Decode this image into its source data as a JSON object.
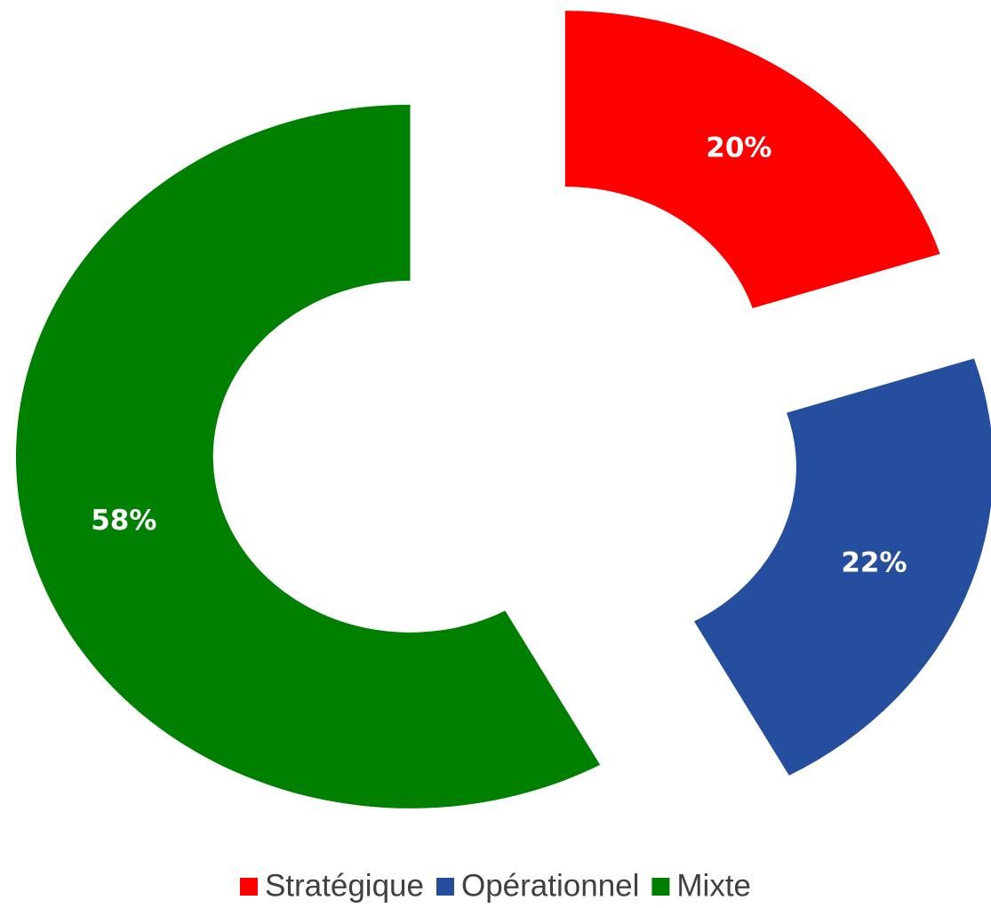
{
  "chart_data": {
    "type": "donut",
    "categories": [
      "Stratégique",
      "Opérationnel",
      "Mixte"
    ],
    "values": [
      20,
      22,
      58
    ],
    "value_labels": [
      "20%",
      "22%",
      "58%"
    ],
    "colors": [
      "#ff0000",
      "#254e9e",
      "#008000"
    ],
    "legend": "bottom"
  }
}
